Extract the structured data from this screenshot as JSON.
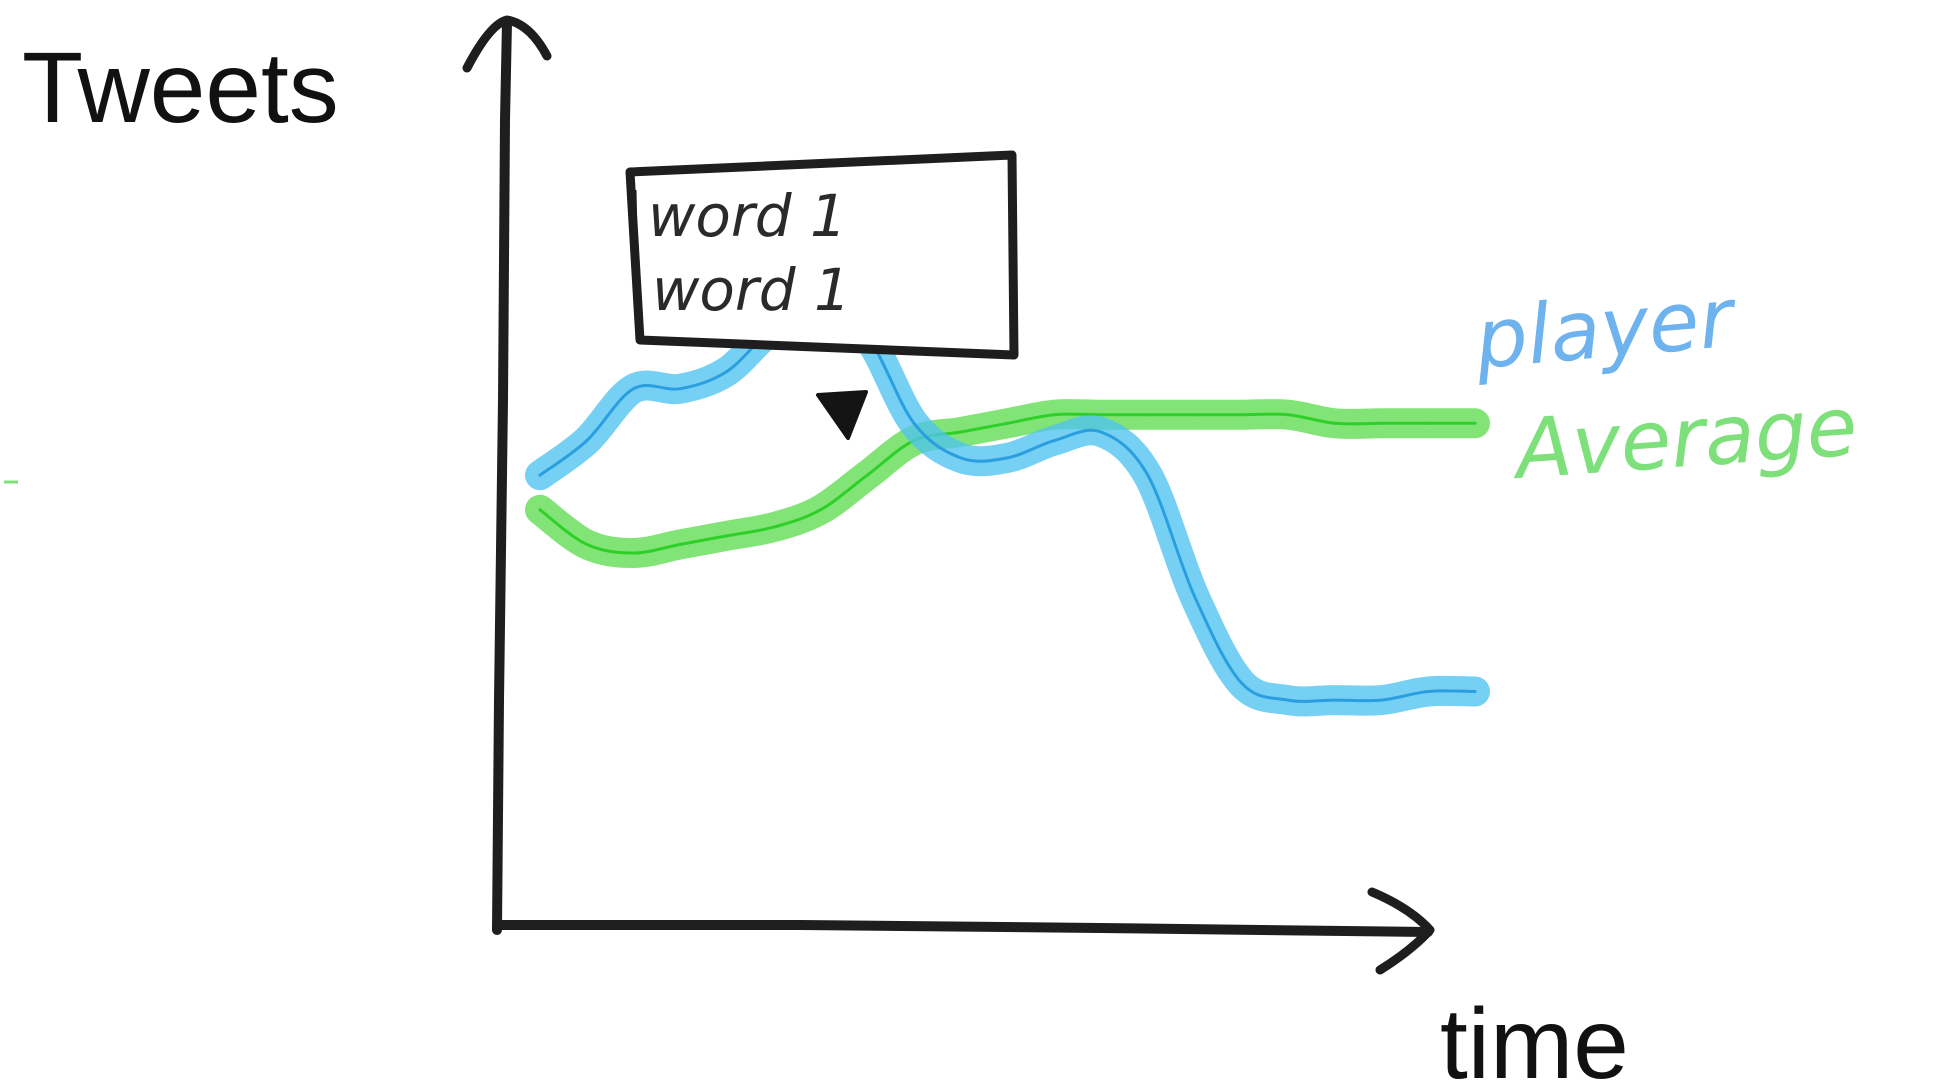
{
  "chart_data": {
    "type": "line",
    "ylabel": "Tweets",
    "xlabel": "time",
    "grid": false,
    "legend_placement": "right",
    "x": [
      0,
      0.05,
      0.1,
      0.15,
      0.2,
      0.25,
      0.3,
      0.35,
      0.4,
      0.45,
      0.5,
      0.55,
      0.6,
      0.65,
      0.7,
      0.75,
      0.8,
      0.85,
      0.9,
      0.95,
      1.0
    ],
    "series": [
      {
        "name": "player",
        "color": "#4fc3ef",
        "values": [
          0.52,
          0.56,
          0.62,
          0.62,
          0.64,
          0.69,
          0.71,
          0.68,
          0.58,
          0.54,
          0.54,
          0.56,
          0.57,
          0.52,
          0.38,
          0.28,
          0.26,
          0.26,
          0.26,
          0.27,
          0.27
        ]
      },
      {
        "name": "Average",
        "color": "#5fdc50",
        "values": [
          0.48,
          0.44,
          0.43,
          0.44,
          0.45,
          0.46,
          0.48,
          0.52,
          0.56,
          0.57,
          0.58,
          0.59,
          0.59,
          0.59,
          0.59,
          0.59,
          0.59,
          0.58,
          0.58,
          0.58,
          0.58
        ]
      }
    ],
    "annotations": [
      {
        "type": "tooltip",
        "series": "player",
        "x": 0.34,
        "lines": [
          "word 1",
          "word 1"
        ]
      }
    ]
  },
  "icons": {
    "y_axis_arrow": "arrow-up-icon",
    "x_axis_arrow": "arrow-right-icon",
    "tooltip_pointer": "triangle-down-icon"
  },
  "colors": {
    "axis": "#1e1e1e",
    "text": "#111111"
  }
}
